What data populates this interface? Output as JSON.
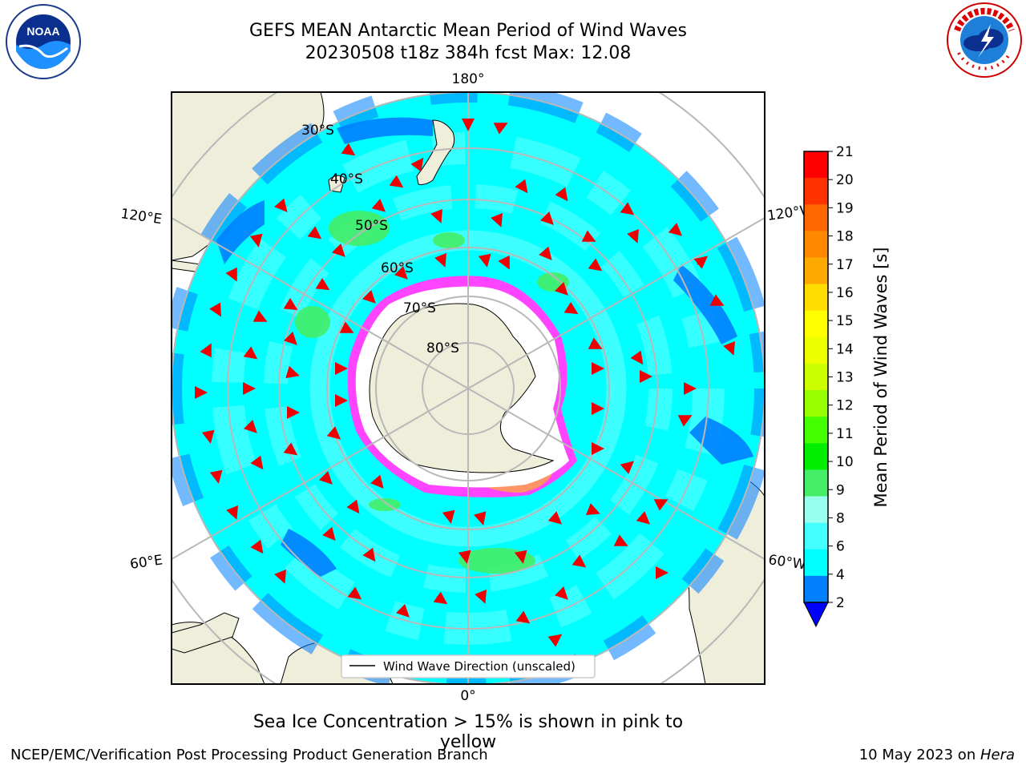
{
  "title": {
    "line1": "GEFS MEAN Antarctic Mean Period of Wind Waves",
    "line2": "20230508 t18z 384h fcst   Max: 12.08"
  },
  "logos": {
    "left": "NOAA",
    "right": "NATIONAL WEATHER SERVICE"
  },
  "map": {
    "projection": "south-polar-stereographic",
    "longitude_labels": {
      "top": "180°",
      "bottom": "0°",
      "left_upper": "120°E",
      "left_lower": "60°E",
      "right_upper": "120°W",
      "right_lower": "60°W"
    },
    "latitude_labels": [
      "30°S",
      "40°S",
      "50°S",
      "60°S",
      "70°S",
      "80°S"
    ],
    "legend": "Wind Wave Direction (unscaled)",
    "colors": {
      "ocean_4_6": "#00ffff",
      "ocean_6_8": "#44ffff",
      "ocean_2_4": "#0080ff",
      "ocean_8_9": "#99ffee",
      "ocean_9_10": "#44ee66",
      "land": "#efeedb",
      "ice_low": "#ff44ff",
      "ice_high": "#ffcc00",
      "arrow": "#ee0000",
      "grid": "#b8b8b8"
    }
  },
  "colorbar": {
    "label": "Mean Period of Wind Waves [s]",
    "ticks": [
      "21",
      "20",
      "19",
      "18",
      "17",
      "16",
      "15",
      "14",
      "13",
      "12",
      "11",
      "10",
      "9",
      "8",
      "6",
      "4",
      "2"
    ],
    "colors": [
      "#ff0000",
      "#ff3300",
      "#ff6600",
      "#ff8800",
      "#ffaa00",
      "#ffdd00",
      "#ffff00",
      "#eeff00",
      "#ccff00",
      "#99ff00",
      "#44ff00",
      "#00ee00",
      "#44ee66",
      "#99ffee",
      "#44ffff",
      "#00ffff",
      "#0080ff"
    ],
    "under_color": "#0000ff"
  },
  "note": "Sea Ice Concentration > 15% is shown in pink to yellow",
  "footer": {
    "left": "NCEP/EMC/Verification Post Processing Product Generation Branch",
    "right_date": "10 May 2023 on ",
    "right_host": "Hera"
  }
}
